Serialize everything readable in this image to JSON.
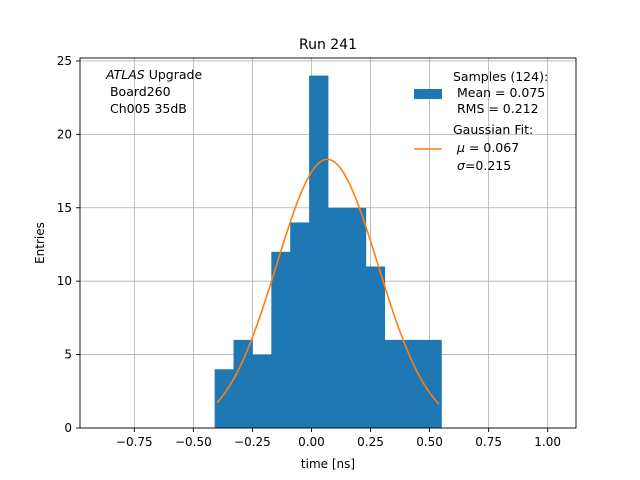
{
  "chart_data": {
    "type": "bar",
    "title": "Run 241",
    "xlabel": "time [ns]",
    "ylabel": "Entries",
    "xlim": [
      -0.98,
      1.12
    ],
    "ylim": [
      0,
      25.2
    ],
    "xticks": [
      -0.75,
      -0.5,
      -0.25,
      0.0,
      0.25,
      0.5,
      0.75,
      1.0
    ],
    "xtick_labels": [
      "−0.75",
      "−0.50",
      "−0.25",
      "0.00",
      "0.25",
      "0.50",
      "0.75",
      "1.00"
    ],
    "yticks": [
      0,
      5,
      10,
      15,
      20,
      25
    ],
    "ytick_labels": [
      "0",
      "5",
      "10",
      "15",
      "20",
      "25"
    ],
    "grid": true,
    "histogram": {
      "name": "Samples",
      "color": "#1f77b4",
      "bins": [
        {
          "x0": -0.41,
          "x1": -0.33,
          "value": 4
        },
        {
          "x0": -0.33,
          "x1": -0.25,
          "value": 6
        },
        {
          "x0": -0.25,
          "x1": -0.17,
          "value": 5
        },
        {
          "x0": -0.17,
          "x1": -0.09,
          "value": 12
        },
        {
          "x0": -0.09,
          "x1": -0.01,
          "value": 14
        },
        {
          "x0": -0.01,
          "x1": 0.07,
          "value": 24
        },
        {
          "x0": 0.07,
          "x1": 0.15,
          "value": 15
        },
        {
          "x0": 0.15,
          "x1": 0.23,
          "value": 15
        },
        {
          "x0": 0.23,
          "x1": 0.31,
          "value": 11
        },
        {
          "x0": 0.31,
          "x1": 0.39,
          "value": 6
        },
        {
          "x0": 0.39,
          "x1": 0.47,
          "value": 6
        },
        {
          "x0": 0.47,
          "x1": 0.55,
          "value": 6
        }
      ]
    },
    "fit": {
      "name": "Gaussian Fit",
      "color": "#ff7f0e",
      "mu": 0.067,
      "sigma": 0.215,
      "amplitude": 18.3,
      "x_range": [
        -0.4,
        0.54
      ]
    },
    "annotation": {
      "line1_italic": "ATLAS",
      "line1_rest": " Upgrade",
      "line2": " Board260",
      "line3": " Ch005 35dB"
    },
    "legend": {
      "placement": "top-right",
      "samples_line1": "Samples (124):",
      "samples_line2": " Mean = 0.075",
      "samples_line3": " RMS = 0.212",
      "fit_line1": "Gaussian Fit:",
      "fit_mu_symbol": "μ",
      "fit_mu_value": " = 0.067",
      "fit_sigma_symbol": "σ",
      "fit_sigma_value": "=0.215"
    }
  }
}
